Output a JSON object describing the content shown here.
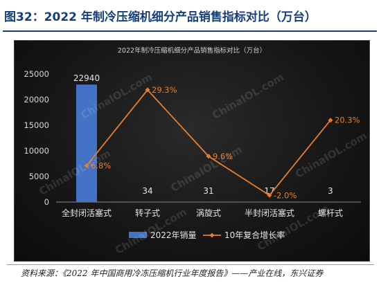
{
  "figure_title": "图32：2022 年制冷压缩机细分产品销售指标对比（万台）",
  "source": "资料来源：《2022 年中国商用冷冻压缩机行业年度报告》——产业在线，东兴证券",
  "watermark": "ChinaIOL.com",
  "chart_data": {
    "type": "bar+line",
    "title": "2022年制冷压缩机细分产品销售指标对比（万台）",
    "categories": [
      "全封闭活塞式",
      "转子式",
      "涡旋式",
      "半封闭活塞式",
      "螺杆式"
    ],
    "series": [
      {
        "name": "2022年销量",
        "type": "bar",
        "values": [
          22940,
          34,
          31,
          17,
          3
        ],
        "labels": [
          "22940",
          "34",
          "31",
          "17",
          "3"
        ],
        "color": "#4472c4"
      },
      {
        "name": "10年复合增长率",
        "type": "line",
        "values": [
          6.8,
          29.3,
          9.6,
          -2.0,
          20.3
        ],
        "labels": [
          "6.8%",
          "29.3%",
          "9.6%",
          "-2.0%",
          "20.3%"
        ],
        "color": "#e87d2e"
      }
    ],
    "ylim": [
      0,
      25000
    ],
    "yticks": [
      "0",
      "5000",
      "10000",
      "15000",
      "20000",
      "25000"
    ],
    "y2lim": [
      -4,
      34
    ],
    "grid": false,
    "legend_position": "bottom"
  }
}
